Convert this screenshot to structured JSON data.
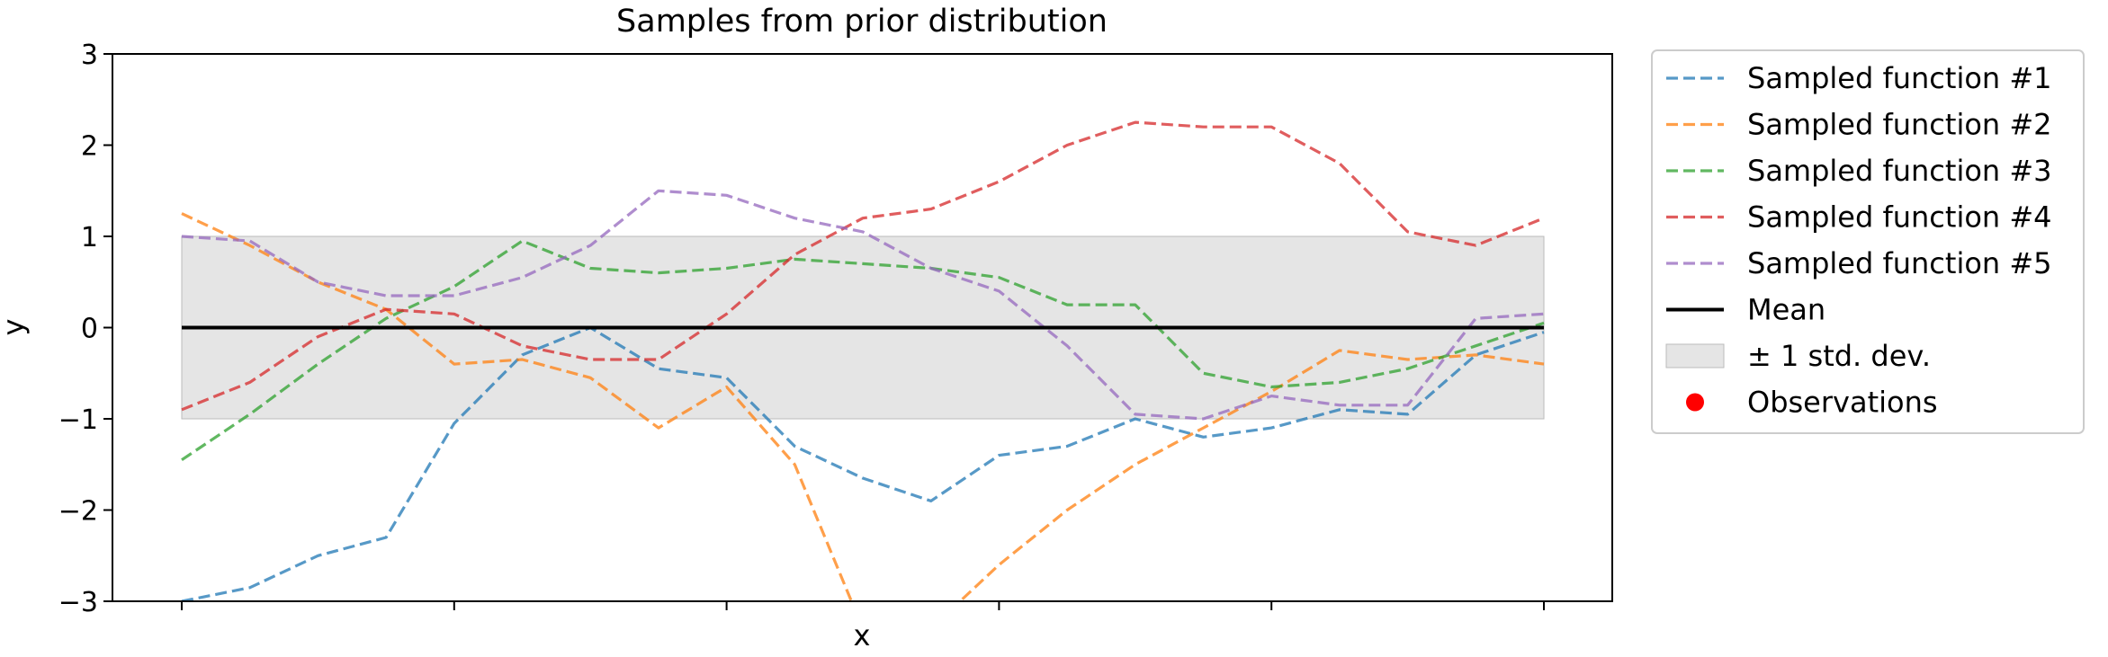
{
  "chart_data": {
    "type": "line",
    "title": "Samples from prior distribution",
    "xlabel": "x",
    "ylabel": "y",
    "xlim": [
      0,
      5
    ],
    "ylim": [
      -3,
      3
    ],
    "x_ticks": [
      0,
      1,
      2,
      3,
      4,
      5
    ],
    "y_ticks": [
      3,
      2,
      1,
      0,
      -1,
      -2,
      -3
    ],
    "y_tick_labels": [
      "3",
      "2",
      "1",
      "0",
      "−1",
      "−2",
      "−3"
    ],
    "grid": false,
    "legend_position": "outside-right-top",
    "x": [
      0,
      0.25,
      0.5,
      0.75,
      1,
      1.25,
      1.5,
      1.75,
      2,
      2.25,
      2.5,
      2.75,
      3,
      3.25,
      3.5,
      3.75,
      4,
      4.25,
      4.5,
      4.75,
      5
    ],
    "series": [
      {
        "name": "Sampled function #1",
        "color": "#1f77b4",
        "style": "dashed",
        "values": [
          -3.0,
          -2.85,
          -2.5,
          -2.3,
          -1.05,
          -0.3,
          0.0,
          -0.45,
          -0.55,
          -1.3,
          -1.65,
          -1.9,
          -1.4,
          -1.3,
          -1.0,
          -1.2,
          -1.1,
          -0.9,
          -0.95,
          -0.3,
          -0.05
        ]
      },
      {
        "name": "Sampled function #2",
        "color": "#ff7f0e",
        "style": "dashed",
        "values": [
          1.25,
          0.9,
          0.5,
          0.2,
          -0.4,
          -0.35,
          -0.55,
          -1.1,
          -0.65,
          -1.5,
          -3.3,
          -3.3,
          -2.6,
          -2.0,
          -1.5,
          -1.1,
          -0.7,
          -0.25,
          -0.35,
          -0.3,
          -0.4
        ]
      },
      {
        "name": "Sampled function #3",
        "color": "#2ca02c",
        "style": "dashed",
        "values": [
          -1.45,
          -0.95,
          -0.4,
          0.1,
          0.45,
          0.95,
          0.65,
          0.6,
          0.65,
          0.75,
          0.7,
          0.65,
          0.55,
          0.25,
          0.25,
          -0.5,
          -0.65,
          -0.6,
          -0.45,
          -0.2,
          0.05
        ]
      },
      {
        "name": "Sampled function #4",
        "color": "#d62728",
        "style": "dashed",
        "values": [
          -0.9,
          -0.6,
          -0.1,
          0.2,
          0.15,
          -0.2,
          -0.35,
          -0.35,
          0.15,
          0.8,
          1.2,
          1.3,
          1.6,
          2.0,
          2.25,
          2.2,
          2.2,
          1.8,
          1.05,
          0.9,
          1.2
        ]
      },
      {
        "name": "Sampled function #5",
        "color": "#9467bd",
        "style": "dashed",
        "values": [
          1.0,
          0.95,
          0.5,
          0.35,
          0.35,
          0.55,
          0.9,
          1.5,
          1.45,
          1.2,
          1.05,
          0.65,
          0.4,
          -0.2,
          -0.95,
          -1.0,
          -0.75,
          -0.85,
          -0.85,
          0.1,
          0.15
        ]
      }
    ],
    "mean": {
      "name": "Mean",
      "color": "#000000",
      "value": 0
    },
    "band": {
      "name": "± 1 std. dev.",
      "color": "#d3d3d3",
      "lower": -1,
      "upper": 1
    },
    "observations": {
      "name": "Observations",
      "color": "#ff0000",
      "points": []
    }
  }
}
